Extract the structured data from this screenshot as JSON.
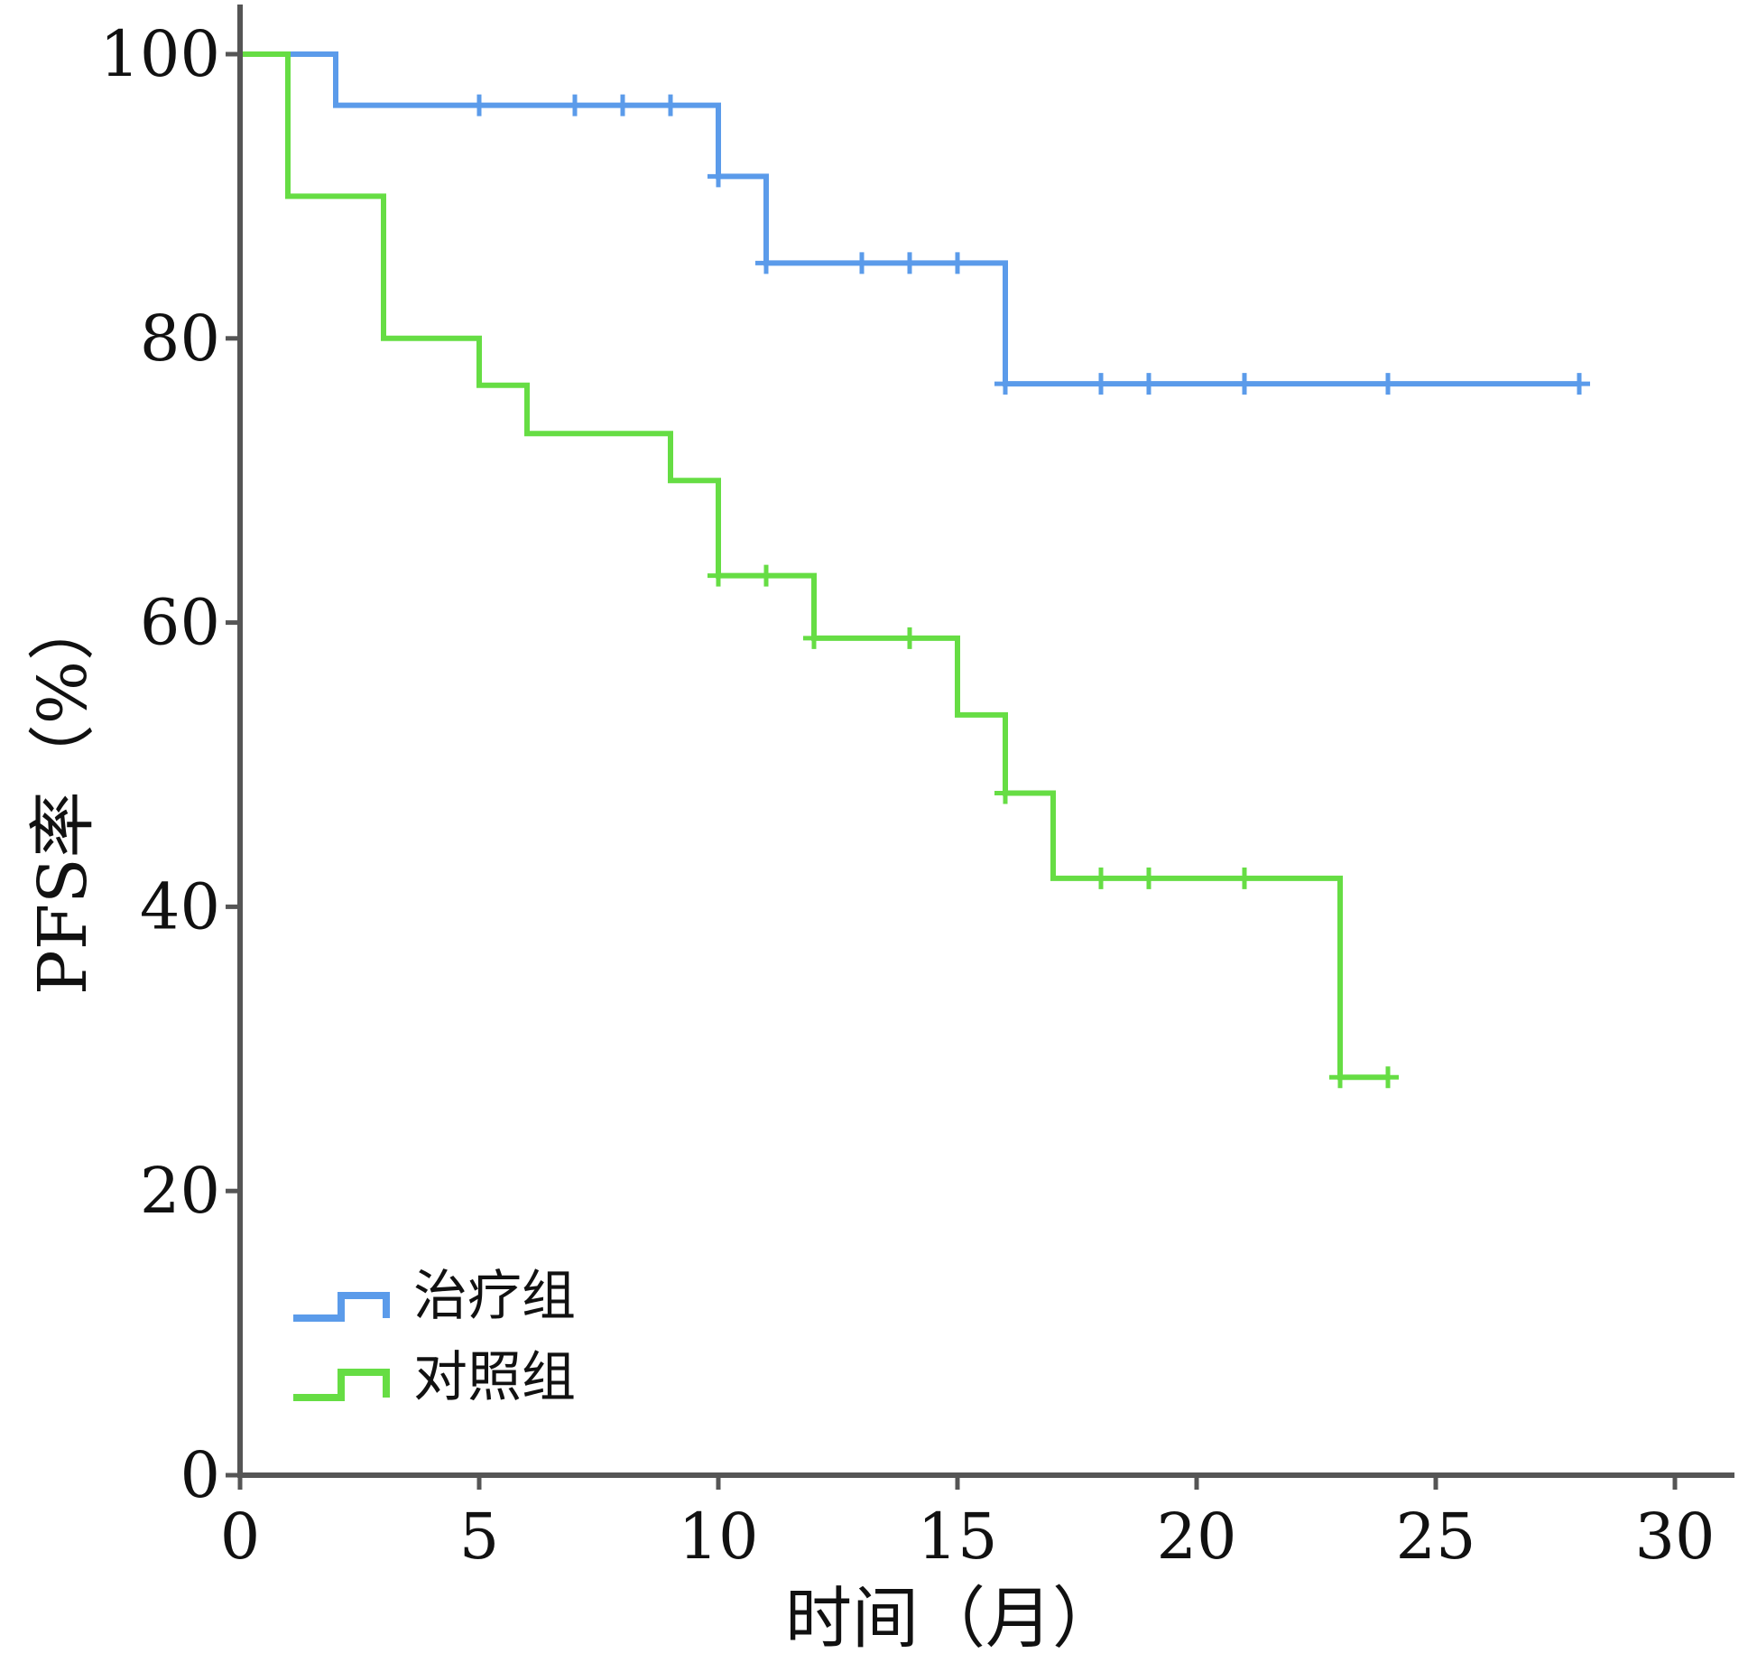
{
  "chart_data": {
    "type": "line",
    "subtype": "kaplan-meier",
    "title": "",
    "xlabel": "时间（月）",
    "ylabel": "PFS率（%）",
    "xlim": [
      0,
      30
    ],
    "ylim": [
      0,
      100
    ],
    "xticks": [
      "0",
      "5",
      "10",
      "15",
      "20",
      "25",
      "30"
    ],
    "yticks": [
      "0",
      "20",
      "40",
      "60",
      "80",
      "100"
    ],
    "grid": false,
    "legend_position": "bottom-left",
    "series": [
      {
        "name": "治疗组",
        "color": "#5b9bea",
        "steps": [
          [
            0,
            100
          ],
          [
            2,
            96.4
          ],
          [
            10,
            91.4
          ],
          [
            11,
            85.3
          ],
          [
            16,
            76.8
          ],
          [
            28,
            76.8
          ]
        ],
        "censored": [
          [
            5,
            96.4
          ],
          [
            7,
            96.4
          ],
          [
            8,
            96.4
          ],
          [
            9,
            96.4
          ],
          [
            10,
            91.4
          ],
          [
            11,
            85.3
          ],
          [
            13,
            85.3
          ],
          [
            14,
            85.3
          ],
          [
            15,
            85.3
          ],
          [
            16,
            76.8
          ],
          [
            18,
            76.8
          ],
          [
            19,
            76.8
          ],
          [
            21,
            76.8
          ],
          [
            24,
            76.8
          ],
          [
            28,
            76.8
          ]
        ]
      },
      {
        "name": "对照组",
        "color": "#66dd44",
        "steps": [
          [
            0,
            100
          ],
          [
            1,
            90
          ],
          [
            3,
            80
          ],
          [
            5,
            76.7
          ],
          [
            6,
            73.3
          ],
          [
            9,
            70
          ],
          [
            10,
            63.3
          ],
          [
            12,
            58.9
          ],
          [
            15,
            53.5
          ],
          [
            16,
            48
          ],
          [
            17,
            42
          ],
          [
            23,
            28
          ],
          [
            24,
            28
          ]
        ],
        "censored": [
          [
            10,
            63.3
          ],
          [
            11,
            63.3
          ],
          [
            12,
            58.9
          ],
          [
            14,
            58.9
          ],
          [
            16,
            48
          ],
          [
            18,
            42
          ],
          [
            19,
            42
          ],
          [
            21,
            42
          ],
          [
            23,
            28
          ],
          [
            24,
            28
          ]
        ]
      }
    ]
  }
}
